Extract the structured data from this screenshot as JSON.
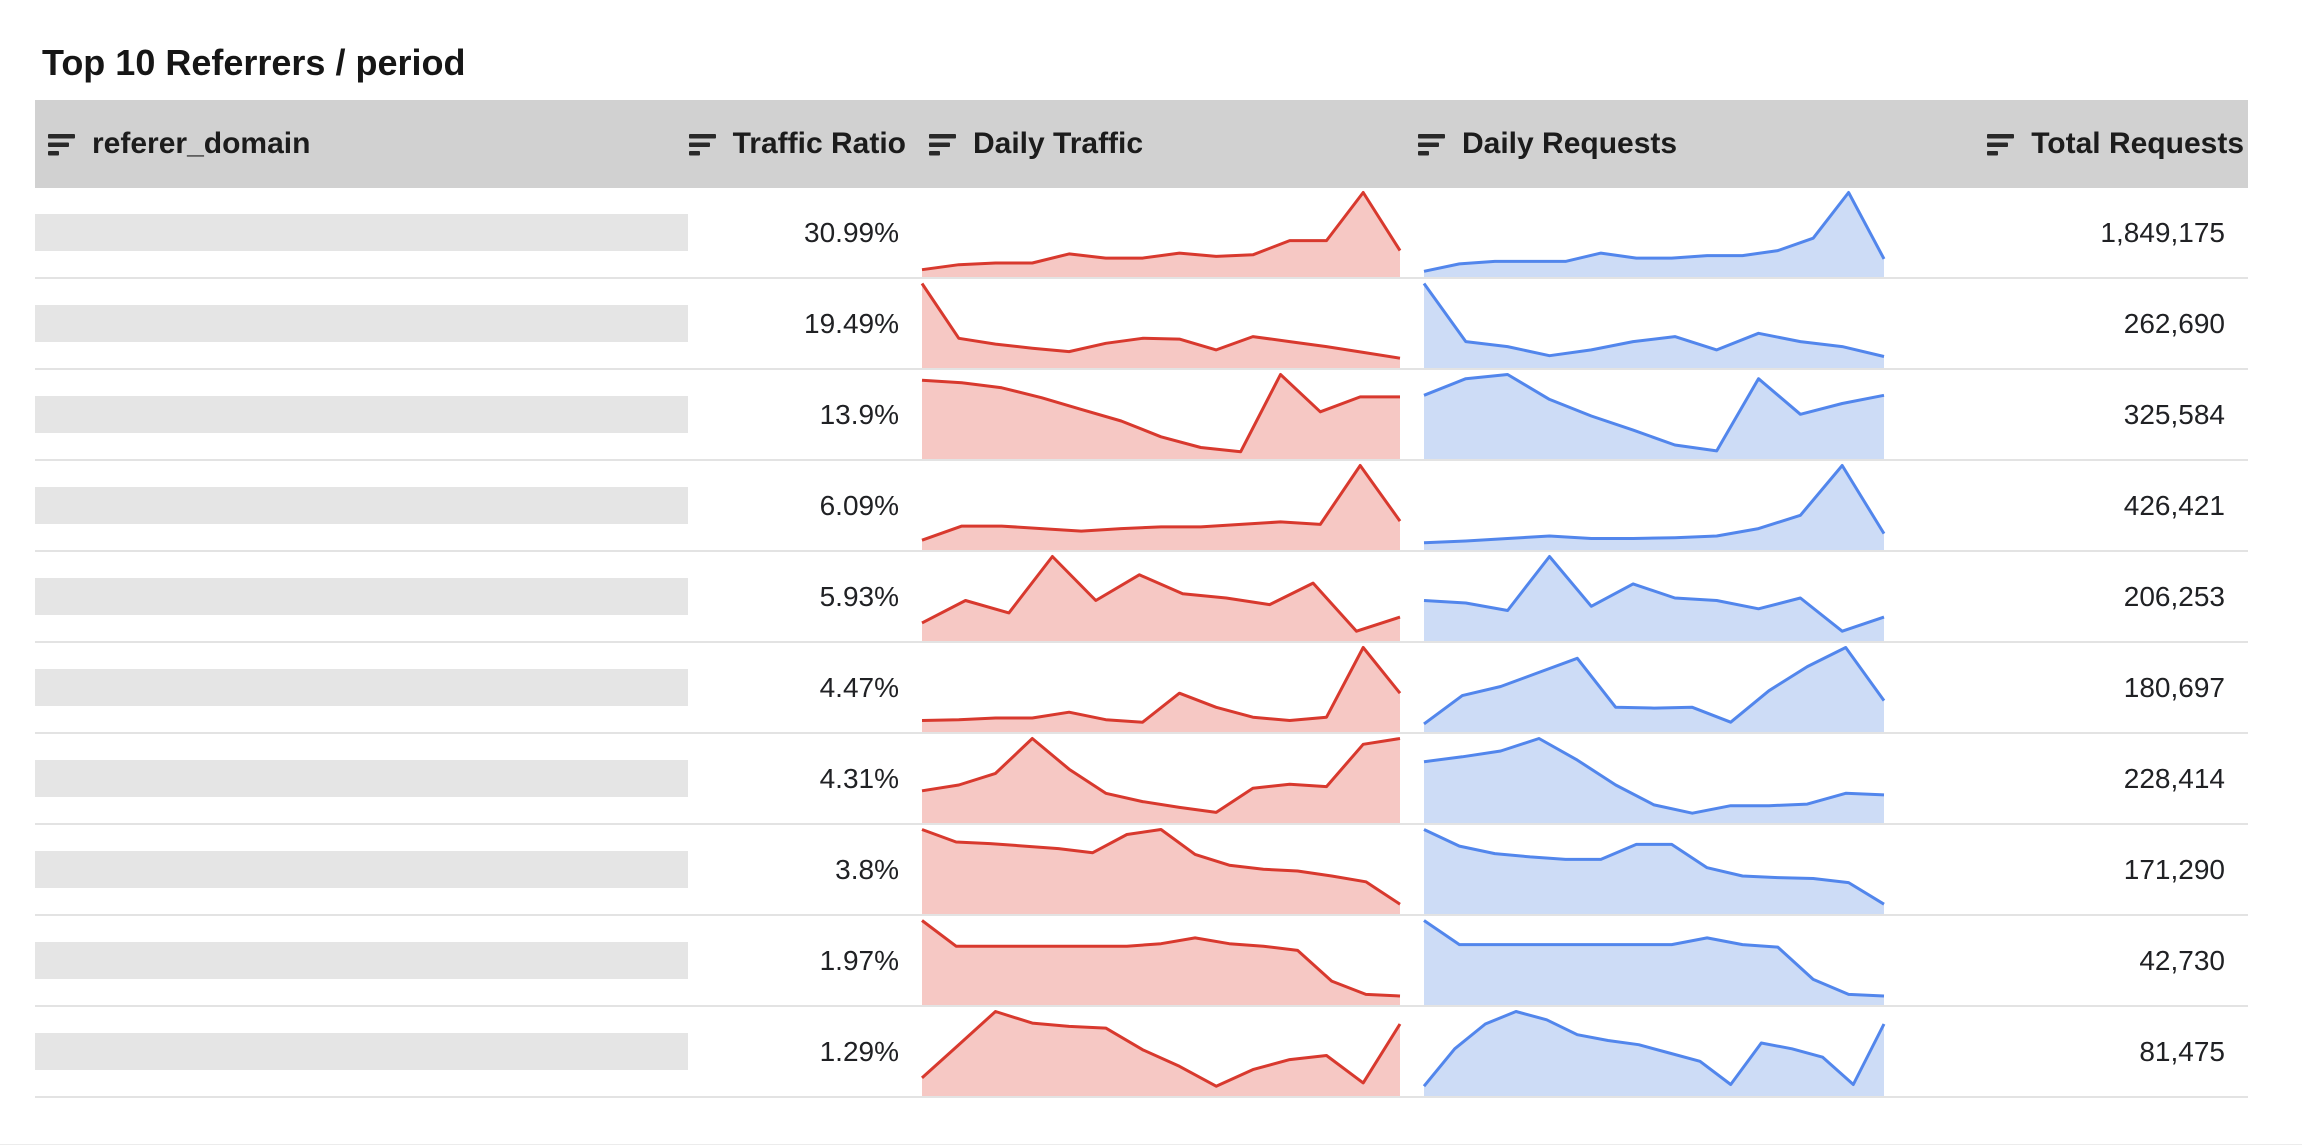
{
  "title": "Top 10 Referrers / period",
  "table": {
    "columns": [
      {
        "label": "referer_domain",
        "icon": "sort-lines-icon"
      },
      {
        "label": "Traffic Ratio",
        "icon": "sort-lines-icon"
      },
      {
        "label": "Daily Traffic",
        "icon": "sort-lines-icon"
      },
      {
        "label": "Daily Requests",
        "icon": "sort-lines-icon"
      },
      {
        "label": "Total Requests",
        "icon": "sort-lines-icon"
      }
    ],
    "referer_domain_redacted": true
  },
  "colors": {
    "header_bg": "#d1d1d1",
    "row_divider": "#e3e3e3",
    "redacted_bar": "#e5e5e5",
    "text": "#202124",
    "daily_traffic_line": "#d8392e",
    "daily_traffic_fill": "#f6c8c4",
    "daily_requests_line": "#5286ec",
    "daily_requests_fill": "#cddcf6"
  },
  "chart_data": {
    "type": "table",
    "title": "Top 10 Referrers / period",
    "columns": [
      "referer_domain",
      "Traffic Ratio",
      "Daily Traffic",
      "Daily Requests",
      "Total Requests"
    ],
    "sparkline_note": "referer_domain values are redacted gray bars; sparkline series are area charts over the period, values normalized 0-1 (estimated from pixels)",
    "rows": [
      {
        "traffic_ratio": "30.99%",
        "total_requests": "1,849,175",
        "daily_traffic": [
          0.07,
          0.13,
          0.15,
          0.15,
          0.26,
          0.21,
          0.21,
          0.27,
          0.23,
          0.25,
          0.42,
          0.42,
          1.0,
          0.3
        ],
        "daily_requests": [
          0.05,
          0.14,
          0.17,
          0.17,
          0.17,
          0.27,
          0.21,
          0.21,
          0.24,
          0.24,
          0.3,
          0.45,
          1.0,
          0.2
        ]
      },
      {
        "traffic_ratio": "19.49%",
        "total_requests": "262,690",
        "daily_traffic": [
          1.0,
          0.34,
          0.27,
          0.22,
          0.18,
          0.28,
          0.34,
          0.33,
          0.2,
          0.36,
          0.3,
          0.24,
          0.17,
          0.1
        ],
        "daily_requests": [
          1.0,
          0.3,
          0.24,
          0.13,
          0.2,
          0.3,
          0.36,
          0.2,
          0.4,
          0.3,
          0.24,
          0.12
        ]
      },
      {
        "traffic_ratio": "13.9%",
        "total_requests": "325,584",
        "daily_traffic": [
          0.93,
          0.9,
          0.84,
          0.72,
          0.58,
          0.44,
          0.25,
          0.12,
          0.07,
          1.0,
          0.55,
          0.73,
          0.73
        ],
        "daily_requests": [
          0.75,
          0.95,
          1.0,
          0.7,
          0.5,
          0.33,
          0.15,
          0.08,
          0.95,
          0.52,
          0.65,
          0.75
        ]
      },
      {
        "traffic_ratio": "6.09%",
        "total_requests": "426,421",
        "daily_traffic": [
          0.1,
          0.27,
          0.27,
          0.24,
          0.21,
          0.24,
          0.26,
          0.26,
          0.29,
          0.32,
          0.29,
          1.0,
          0.33
        ],
        "daily_requests": [
          0.07,
          0.09,
          0.12,
          0.15,
          0.12,
          0.12,
          0.13,
          0.15,
          0.24,
          0.4,
          1.0,
          0.18
        ]
      },
      {
        "traffic_ratio": "5.93%",
        "total_requests": "206,253",
        "daily_traffic": [
          0.2,
          0.47,
          0.32,
          1.0,
          0.47,
          0.78,
          0.55,
          0.5,
          0.42,
          0.68,
          0.1,
          0.27
        ],
        "daily_requests": [
          0.47,
          0.44,
          0.35,
          1.0,
          0.4,
          0.67,
          0.5,
          0.47,
          0.37,
          0.5,
          0.1,
          0.27
        ]
      },
      {
        "traffic_ratio": "4.47%",
        "total_requests": "180,697",
        "daily_traffic": [
          0.12,
          0.13,
          0.15,
          0.15,
          0.22,
          0.13,
          0.1,
          0.45,
          0.28,
          0.16,
          0.12,
          0.16,
          1.0,
          0.45
        ],
        "daily_requests": [
          0.08,
          0.42,
          0.53,
          0.7,
          0.87,
          0.28,
          0.27,
          0.28,
          0.1,
          0.48,
          0.77,
          1.0,
          0.36
        ]
      },
      {
        "traffic_ratio": "4.31%",
        "total_requests": "228,414",
        "daily_traffic": [
          0.37,
          0.44,
          0.58,
          1.0,
          0.63,
          0.34,
          0.24,
          0.17,
          0.11,
          0.4,
          0.45,
          0.42,
          0.93,
          1.0
        ],
        "daily_requests": [
          0.72,
          0.78,
          0.85,
          1.0,
          0.74,
          0.44,
          0.2,
          0.1,
          0.19,
          0.19,
          0.21,
          0.34,
          0.32
        ]
      },
      {
        "traffic_ratio": "3.8%",
        "total_requests": "171,290",
        "daily_traffic": [
          1.0,
          0.85,
          0.83,
          0.8,
          0.77,
          0.72,
          0.94,
          1.0,
          0.7,
          0.57,
          0.52,
          0.5,
          0.44,
          0.37,
          0.1
        ],
        "daily_requests": [
          1.0,
          0.8,
          0.71,
          0.67,
          0.64,
          0.64,
          0.82,
          0.82,
          0.54,
          0.44,
          0.42,
          0.41,
          0.36,
          0.1
        ]
      },
      {
        "traffic_ratio": "1.97%",
        "total_requests": "42,730",
        "daily_traffic": [
          1.0,
          0.69,
          0.69,
          0.69,
          0.69,
          0.69,
          0.69,
          0.72,
          0.79,
          0.72,
          0.69,
          0.64,
          0.27,
          0.11,
          0.09
        ],
        "daily_requests": [
          1.0,
          0.71,
          0.71,
          0.71,
          0.71,
          0.71,
          0.71,
          0.71,
          0.79,
          0.71,
          0.68,
          0.29,
          0.11,
          0.09
        ]
      },
      {
        "traffic_ratio": "1.29%",
        "total_requests": "81,475",
        "daily_traffic": [
          0.2,
          0.6,
          1.0,
          0.86,
          0.82,
          0.8,
          0.54,
          0.34,
          0.1,
          0.3,
          0.42,
          0.47,
          0.14,
          0.85
        ],
        "daily_requests": [
          0.1,
          0.55,
          0.85,
          1.0,
          0.9,
          0.72,
          0.65,
          0.6,
          0.5,
          0.4,
          0.12,
          0.62,
          0.55,
          0.45,
          0.12,
          0.85
        ]
      }
    ]
  }
}
